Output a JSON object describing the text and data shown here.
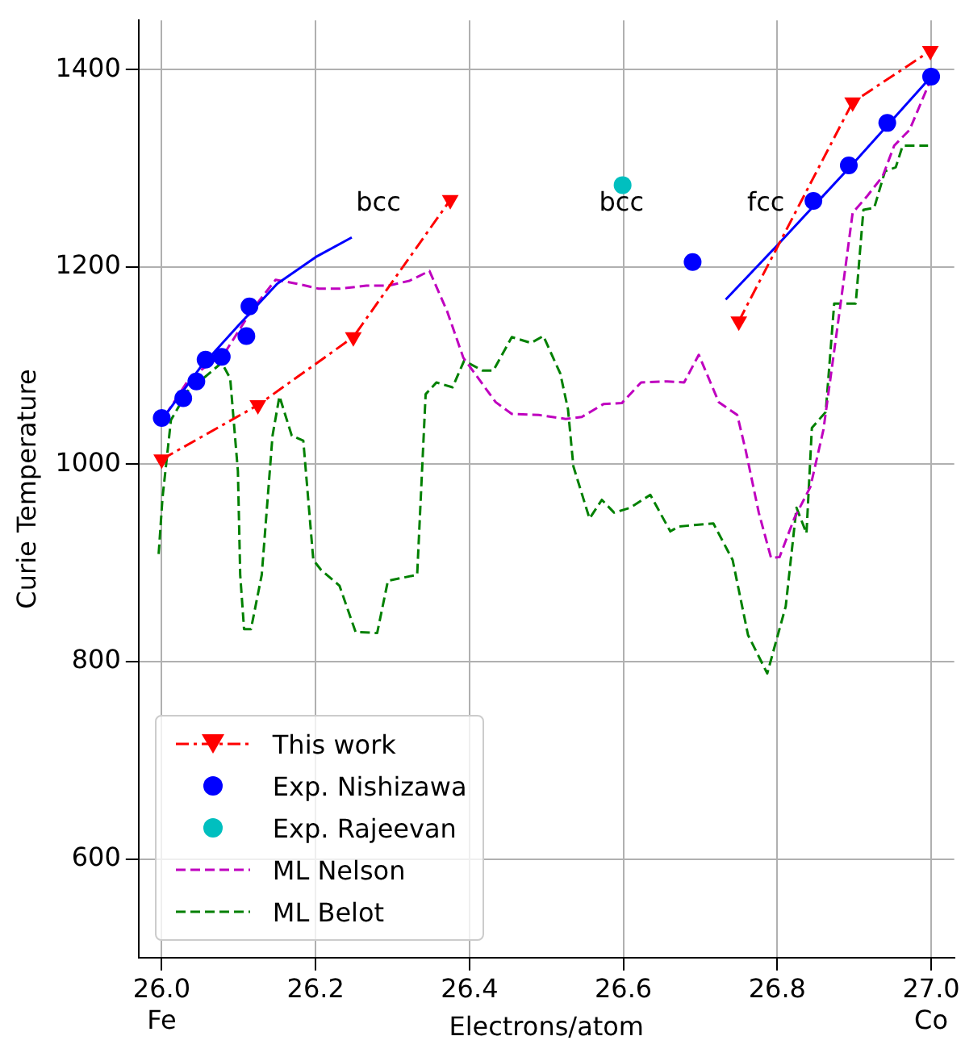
{
  "chart_data": {
    "type": "line",
    "xlabel": "Electrons/atom",
    "ylabel": "Curie Temperature",
    "xlim": [
      25.97,
      27.03
    ],
    "ylim": [
      500,
      1450
    ],
    "xticks": [
      {
        "value": 26.0,
        "label": "26.0\nFe"
      },
      26.2,
      26.4,
      26.6,
      26.8,
      {
        "value": 27.0,
        "label": "27.0\nCo"
      }
    ],
    "yticks": [
      600,
      800,
      1000,
      1200,
      1400
    ],
    "grid": true,
    "legend": "bottom left",
    "annotations": [
      "bcc",
      "bcc",
      "fcc"
    ],
    "series": [
      {
        "name": "This work",
        "color": "#ff0000",
        "marker": "triangle",
        "line_style": "dashdot",
        "x": [
          26.0,
          26.125,
          26.249,
          26.375
        ],
        "values": [
          1005,
          1060,
          1129,
          1268
        ]
      },
      {
        "color": "#ff0000",
        "marker": "triangle",
        "line_style": "dashdot",
        "x": [
          26.75,
          26.898,
          26.999
        ],
        "values": [
          1145,
          1367,
          1419
        ]
      },
      {
        "name": "Exp. Nishizawa",
        "type": "scatter",
        "color": "#0000ff",
        "marker": "circle",
        "x": [
          26.0,
          26.028,
          26.045,
          26.057,
          26.078,
          26.11,
          26.114,
          26.69,
          26.847,
          26.893,
          26.943,
          27.0
        ],
        "values": [
          1047,
          1067,
          1084,
          1106,
          1109,
          1130,
          1160,
          1205,
          1267,
          1303,
          1346,
          1393
        ]
      },
      {
        "color": "#0000ff",
        "marker": "none",
        "line_style": "solid",
        "x": [
          26.0,
          26.05,
          26.1,
          26.15,
          26.2,
          26.247
        ],
        "values": [
          1045,
          1098,
          1141,
          1183,
          1210,
          1230
        ]
      },
      {
        "color": "#0000ff",
        "marker": "none",
        "line_style": "solid",
        "x": [
          26.733,
          26.8,
          26.9,
          27.0
        ],
        "values": [
          1167,
          1222,
          1306,
          1393
        ]
      },
      {
        "name": "Exp. Rajeevan",
        "type": "scatter",
        "color": "#00bfbf",
        "marker": "circle",
        "x": [
          26.599
        ],
        "values": [
          1283
        ]
      },
      {
        "name": "ML Nelson",
        "color": "#bf00bf",
        "marker": "none",
        "line_style": "dashed",
        "x": [
          26.005,
          26.036,
          26.082,
          26.116,
          26.148,
          26.176,
          26.204,
          26.231,
          26.266,
          26.294,
          26.322,
          26.348,
          26.371,
          26.392,
          26.434,
          26.455,
          26.49,
          26.525,
          26.546,
          26.574,
          26.598,
          26.623,
          26.657,
          26.679,
          26.698,
          26.724,
          26.748,
          26.759,
          26.776,
          26.792,
          26.803,
          26.822,
          26.843,
          26.86,
          26.881,
          26.898,
          26.916,
          26.937,
          26.952,
          26.972,
          26.999
        ],
        "values": [
          1050,
          1087,
          1113,
          1155,
          1187,
          1183,
          1178,
          1178,
          1181,
          1181,
          1186,
          1196,
          1155,
          1108,
          1063,
          1051,
          1050,
          1046,
          1048,
          1061,
          1062,
          1083,
          1084,
          1083,
          1111,
          1063,
          1050,
          1014,
          951,
          905,
          906,
          945,
          977,
          1035,
          1155,
          1255,
          1271,
          1292,
          1323,
          1339,
          1389
        ]
      },
      {
        "name": "ML Belot",
        "color": "#008000",
        "marker": "none",
        "line_style": "dashed",
        "x": [
          25.996,
          26.001,
          26.012,
          26.036,
          26.054,
          26.078,
          26.089,
          26.099,
          26.102,
          26.107,
          26.116,
          26.13,
          26.144,
          26.153,
          26.169,
          26.184,
          26.197,
          26.207,
          26.231,
          26.252,
          26.28,
          26.294,
          26.332,
          26.343,
          26.357,
          26.378,
          26.393,
          26.417,
          26.431,
          26.455,
          26.48,
          26.496,
          26.518,
          26.528,
          26.535,
          26.556,
          26.572,
          26.588,
          26.609,
          26.635,
          26.661,
          26.672,
          26.717,
          26.742,
          26.762,
          26.787,
          26.811,
          26.825,
          26.838,
          26.845,
          26.863,
          26.874,
          26.902,
          26.912,
          26.926,
          26.94,
          26.954,
          26.963,
          26.996
        ],
        "values": [
          909,
          966,
          1045,
          1077,
          1087,
          1103,
          1087,
          993,
          888,
          833,
          833,
          888,
          1029,
          1069,
          1029,
          1024,
          903,
          893,
          877,
          830,
          829,
          882,
          888,
          1071,
          1083,
          1078,
          1105,
          1095,
          1095,
          1129,
          1123,
          1130,
          1092,
          1056,
          998,
          945,
          964,
          951,
          956,
          969,
          932,
          937,
          940,
          903,
          827,
          788,
          856,
          956,
          930,
          1037,
          1053,
          1163,
          1163,
          1258,
          1260,
          1297,
          1301,
          1323,
          1323
        ]
      }
    ]
  }
}
